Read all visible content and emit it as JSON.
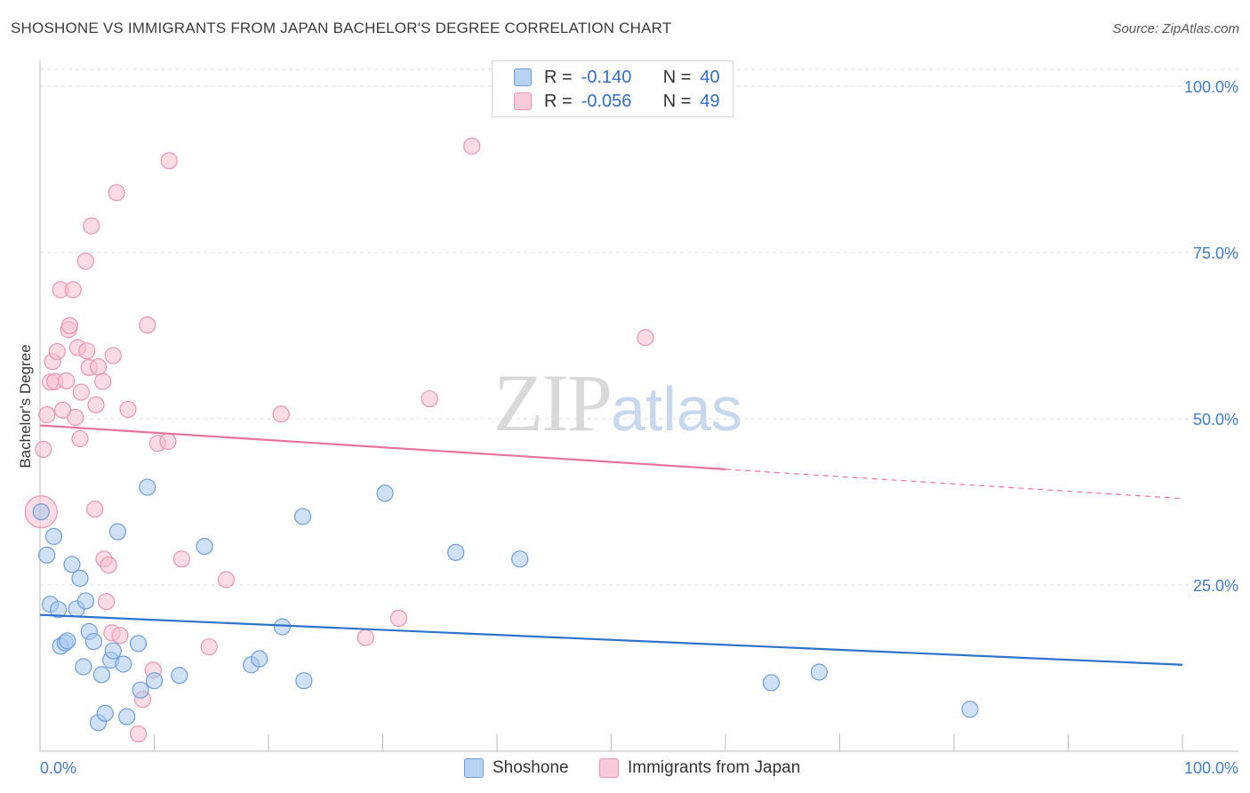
{
  "title": "SHOSHONE VS IMMIGRANTS FROM JAPAN BACHELOR'S DEGREE CORRELATION CHART",
  "source": "Source: ZipAtlas.com",
  "watermark": {
    "zip": "ZIP",
    "atlas": "atlas"
  },
  "legend": {
    "rows": [
      {
        "r_label": "R =",
        "r_value": "-0.140",
        "n_label": "N =",
        "n_value": "40"
      },
      {
        "r_label": "R =",
        "r_value": "-0.056",
        "n_label": "N =",
        "n_value": "49"
      }
    ]
  },
  "colors": {
    "blue_fill": "#a9c8ef",
    "blue_stroke": "#6d9fdc",
    "blue_line": "#2d73cc",
    "pink_fill": "#f7bfd0",
    "pink_stroke": "#ec94b1",
    "pink_line": "#e8729b",
    "axis_text": "#3f7cc9",
    "grid": "#dddddd"
  },
  "chart_data": {
    "type": "scatter",
    "title": "SHOSHONE VS IMMIGRANTS FROM JAPAN BACHELOR'S DEGREE CORRELATION CHART",
    "xlabel": "",
    "ylabel": "Bachelor's Degree",
    "xlim": [
      0,
      100
    ],
    "ylim": [
      0,
      100
    ],
    "x_tick_labels": [
      "0.0%",
      "100.0%"
    ],
    "y_ticks": [
      25,
      50,
      75,
      100
    ],
    "y_tick_labels": [
      "25.0%",
      "50.0%",
      "75.0%",
      "100.0%"
    ],
    "series": [
      {
        "name": "Shoshone",
        "r": -0.14,
        "n": 40,
        "trend": {
          "x": [
            0,
            100
          ],
          "y": [
            20.5,
            13.0
          ]
        },
        "points": [
          {
            "x": 0.1,
            "y": 36.0
          },
          {
            "x": 0.6,
            "y": 29.5
          },
          {
            "x": 1.2,
            "y": 32.3
          },
          {
            "x": 0.9,
            "y": 22.1
          },
          {
            "x": 1.6,
            "y": 21.3
          },
          {
            "x": 1.8,
            "y": 15.8
          },
          {
            "x": 2.2,
            "y": 16.3
          },
          {
            "x": 2.4,
            "y": 16.6
          },
          {
            "x": 2.8,
            "y": 28.1
          },
          {
            "x": 3.2,
            "y": 21.4
          },
          {
            "x": 3.5,
            "y": 26.0
          },
          {
            "x": 3.8,
            "y": 12.7
          },
          {
            "x": 4.0,
            "y": 22.6
          },
          {
            "x": 4.3,
            "y": 18.0
          },
          {
            "x": 4.7,
            "y": 16.5
          },
          {
            "x": 5.1,
            "y": 4.3
          },
          {
            "x": 5.4,
            "y": 11.5
          },
          {
            "x": 5.7,
            "y": 5.7
          },
          {
            "x": 6.2,
            "y": 13.7
          },
          {
            "x": 6.4,
            "y": 15.1
          },
          {
            "x": 6.8,
            "y": 33.0
          },
          {
            "x": 7.3,
            "y": 13.1
          },
          {
            "x": 7.6,
            "y": 5.2
          },
          {
            "x": 8.6,
            "y": 16.2
          },
          {
            "x": 8.8,
            "y": 9.2
          },
          {
            "x": 9.4,
            "y": 39.7
          },
          {
            "x": 10.0,
            "y": 10.6
          },
          {
            "x": 12.2,
            "y": 11.4
          },
          {
            "x": 14.4,
            "y": 30.8
          },
          {
            "x": 18.5,
            "y": 13.0
          },
          {
            "x": 19.2,
            "y": 13.9
          },
          {
            "x": 21.2,
            "y": 18.7
          },
          {
            "x": 23.0,
            "y": 35.3
          },
          {
            "x": 23.1,
            "y": 10.6
          },
          {
            "x": 30.2,
            "y": 38.8
          },
          {
            "x": 36.4,
            "y": 29.9
          },
          {
            "x": 42.0,
            "y": 28.9
          },
          {
            "x": 64.0,
            "y": 10.3
          },
          {
            "x": 68.2,
            "y": 11.9
          },
          {
            "x": 81.4,
            "y": 6.3
          }
        ]
      },
      {
        "name": "Immigrants from Japan",
        "r": -0.056,
        "n": 49,
        "trend": {
          "x": [
            0,
            100
          ],
          "y": [
            49.0,
            38.0
          ]
        },
        "points": [
          {
            "x": 0.1,
            "y": 36.0,
            "size": "large"
          },
          {
            "x": 0.3,
            "y": 45.4
          },
          {
            "x": 0.6,
            "y": 50.6
          },
          {
            "x": 0.9,
            "y": 55.5
          },
          {
            "x": 1.1,
            "y": 58.6
          },
          {
            "x": 1.3,
            "y": 55.6
          },
          {
            "x": 1.5,
            "y": 60.1
          },
          {
            "x": 1.8,
            "y": 69.4
          },
          {
            "x": 2.0,
            "y": 51.3
          },
          {
            "x": 2.3,
            "y": 55.7
          },
          {
            "x": 2.5,
            "y": 63.4
          },
          {
            "x": 2.6,
            "y": 64.0
          },
          {
            "x": 2.9,
            "y": 69.4
          },
          {
            "x": 3.1,
            "y": 50.2
          },
          {
            "x": 3.3,
            "y": 60.7
          },
          {
            "x": 3.5,
            "y": 47.0
          },
          {
            "x": 3.6,
            "y": 54.0
          },
          {
            "x": 4.0,
            "y": 73.7
          },
          {
            "x": 4.1,
            "y": 60.2
          },
          {
            "x": 4.3,
            "y": 57.7
          },
          {
            "x": 4.5,
            "y": 79.0
          },
          {
            "x": 4.8,
            "y": 36.4
          },
          {
            "x": 4.9,
            "y": 52.1
          },
          {
            "x": 5.1,
            "y": 57.8
          },
          {
            "x": 5.5,
            "y": 55.6
          },
          {
            "x": 5.6,
            "y": 28.9
          },
          {
            "x": 5.8,
            "y": 22.5
          },
          {
            "x": 6.0,
            "y": 28.0
          },
          {
            "x": 6.3,
            "y": 17.8
          },
          {
            "x": 6.4,
            "y": 59.5
          },
          {
            "x": 6.7,
            "y": 84.0
          },
          {
            "x": 7.0,
            "y": 17.4
          },
          {
            "x": 7.7,
            "y": 51.4
          },
          {
            "x": 8.6,
            "y": 2.6
          },
          {
            "x": 9.0,
            "y": 7.8
          },
          {
            "x": 9.4,
            "y": 64.1
          },
          {
            "x": 9.9,
            "y": 12.2
          },
          {
            "x": 10.3,
            "y": 46.3
          },
          {
            "x": 11.2,
            "y": 46.6
          },
          {
            "x": 11.3,
            "y": 88.8
          },
          {
            "x": 12.4,
            "y": 28.9
          },
          {
            "x": 14.8,
            "y": 15.7
          },
          {
            "x": 16.3,
            "y": 25.8
          },
          {
            "x": 21.1,
            "y": 50.7
          },
          {
            "x": 28.5,
            "y": 17.1
          },
          {
            "x": 31.4,
            "y": 20.0
          },
          {
            "x": 34.1,
            "y": 53.0
          },
          {
            "x": 37.8,
            "y": 91.0
          },
          {
            "x": 53.0,
            "y": 62.2
          }
        ]
      }
    ]
  },
  "bottom_legend": [
    {
      "label": "Shoshone"
    },
    {
      "label": "Immigrants from Japan"
    }
  ]
}
